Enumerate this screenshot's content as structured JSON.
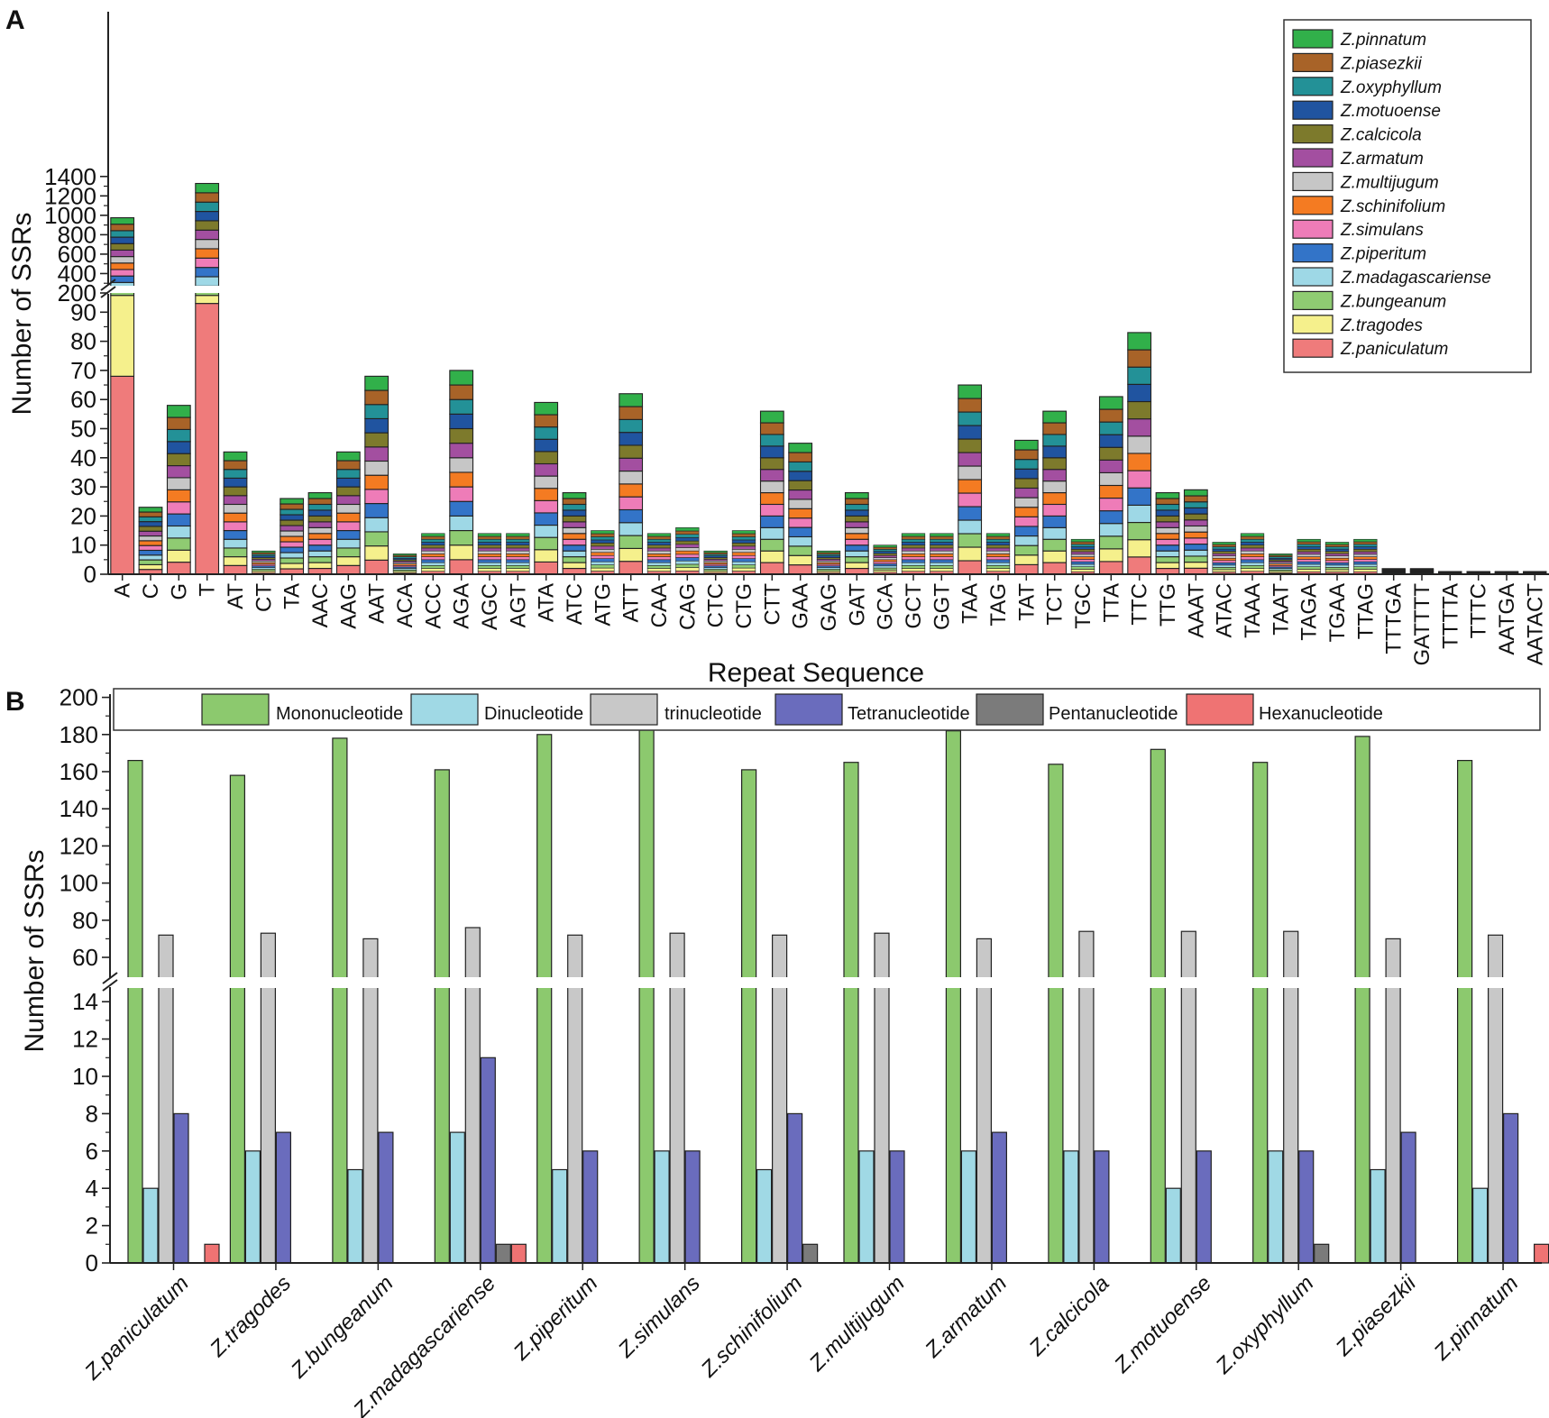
{
  "figure": {
    "panel_labels": [
      "A",
      "B"
    ]
  },
  "chart_data": [
    {
      "type": "bar",
      "stacked": true,
      "panel": "A",
      "xlabel": "Repeat Sequence",
      "ylabel": "Number of SSRs",
      "axis_break": {
        "lower_range": [
          0,
          95
        ],
        "upper_range": [
          100,
          1400
        ]
      },
      "lower_ticks": [
        0,
        10,
        20,
        30,
        40,
        50,
        60,
        70,
        80,
        90
      ],
      "upper_ticks": [
        200,
        400,
        600,
        800,
        1000,
        1200,
        1400
      ],
      "categories": [
        "A",
        "C",
        "G",
        "T",
        "AT",
        "CT",
        "TA",
        "AAC",
        "AAG",
        "AAT",
        "ACA",
        "ACC",
        "AGA",
        "AGC",
        "AGT",
        "ATA",
        "ATC",
        "ATG",
        "ATT",
        "CAA",
        "CAG",
        "CTC",
        "CTG",
        "CTT",
        "GAA",
        "GAG",
        "GAT",
        "GCA",
        "GCT",
        "GGT",
        "TAA",
        "TAG",
        "TAT",
        "TCT",
        "TGC",
        "TTA",
        "TTC",
        "TTG",
        "AAAT",
        "ATAC",
        "TAAA",
        "TAAT",
        "TAGA",
        "TGAA",
        "TTAG",
        "TTTGA",
        "GATTTT",
        "TTTTA",
        "TTTC",
        "AATGA",
        "AATACT"
      ],
      "totals": [
        975,
        23,
        58,
        1328,
        42,
        8,
        26,
        28,
        42,
        68,
        7,
        14,
        70,
        14,
        14,
        59,
        28,
        15,
        62,
        14,
        16,
        8,
        15,
        56,
        45,
        8,
        28,
        10,
        14,
        14,
        65,
        14,
        46,
        56,
        12,
        61,
        83,
        28,
        29,
        11,
        14,
        7,
        12,
        11,
        12,
        2,
        2,
        1,
        1,
        1,
        1
      ],
      "legend_placement": "top-right",
      "series": [
        {
          "name": "Z.paniculatum",
          "color": "#ef7b7b"
        },
        {
          "name": "Z.tragodes",
          "color": "#f5f08c"
        },
        {
          "name": "Z.bungeanum",
          "color": "#8fcb72"
        },
        {
          "name": "Z.madagascariense",
          "color": "#9ed8e6"
        },
        {
          "name": "Z.piperitum",
          "color": "#3374c8"
        },
        {
          "name": "Z.simulans",
          "color": "#ee7cb8"
        },
        {
          "name": "Z.schinifolium",
          "color": "#f47b22"
        },
        {
          "name": "Z.multijugum",
          "color": "#c6c6c6"
        },
        {
          "name": "Z.armatum",
          "color": "#a34fa0"
        },
        {
          "name": "Z.calcicola",
          "color": "#7d7a2c"
        },
        {
          "name": "Z.motuoense",
          "color": "#2054a0"
        },
        {
          "name": "Z.oxyphyllum",
          "color": "#239197"
        },
        {
          "name": "Z.piasezkii",
          "color": "#a86328"
        },
        {
          "name": "Z.pinnatum",
          "color": "#31b04a"
        }
      ],
      "legend_order": [
        "Z.pinnatum",
        "Z.piasezkii",
        "Z.oxyphyllum",
        "Z.motuoense",
        "Z.calcicola",
        "Z.armatum",
        "Z.multijugum",
        "Z.schinifolium",
        "Z.simulans",
        "Z.piperitum",
        "Z.madagascariense",
        "Z.bungeanum",
        "Z.tragodes",
        "Z.paniculatum"
      ],
      "first_segments": {
        "A": [
          68,
          107
        ],
        "T": [
          93,
          82
        ]
      }
    },
    {
      "type": "bar",
      "stacked": false,
      "panel": "B",
      "ylabel": "Number of SSRs",
      "axis_break": {
        "lower_range": [
          0,
          15
        ],
        "upper_range": [
          50,
          200
        ]
      },
      "lower_ticks": [
        0,
        2,
        4,
        6,
        8,
        10,
        12,
        14
      ],
      "upper_ticks": [
        60,
        80,
        100,
        120,
        140,
        160,
        180,
        200
      ],
      "categories": [
        "Z.paniculatum",
        "Z.tragodes",
        "Z.bungeanum",
        "Z.madagascariense",
        "Z.piperitum",
        "Z.simulans",
        "Z.schinifolium",
        "Z.multijugum",
        "Z.armatum",
        "Z.calcicola",
        "Z.motuoense",
        "Z.oxyphyllum",
        "Z.piasezkii",
        "Z.pinnatum"
      ],
      "series": [
        {
          "name": "Mononucleotide",
          "color": "#8cc96e",
          "values": [
            166,
            158,
            178,
            161,
            180,
            183,
            161,
            165,
            182,
            164,
            172,
            165,
            179,
            166
          ]
        },
        {
          "name": "Dinucleotide",
          "color": "#a0d9e5",
          "values": [
            4,
            6,
            5,
            7,
            5,
            6,
            5,
            6,
            6,
            6,
            4,
            6,
            5,
            4
          ]
        },
        {
          "name": "trinucleotide",
          "color": "#c8c8c8",
          "values": [
            72,
            73,
            70,
            76,
            72,
            73,
            72,
            73,
            70,
            74,
            74,
            74,
            70,
            72
          ]
        },
        {
          "name": "Tetranucleotide",
          "color": "#6a6cbd",
          "values": [
            8,
            7,
            7,
            11,
            6,
            6,
            8,
            6,
            7,
            6,
            6,
            6,
            7,
            8
          ]
        },
        {
          "name": "Pentanucleotide",
          "color": "#7b7b7b",
          "values": [
            0,
            0,
            0,
            1,
            0,
            0,
            1,
            0,
            0,
            0,
            0,
            1,
            0,
            0
          ]
        },
        {
          "name": "Hexanucleotide",
          "color": "#ef7373",
          "values": [
            1,
            0,
            0,
            1,
            0,
            0,
            0,
            0,
            0,
            0,
            0,
            0,
            0,
            1
          ]
        }
      ]
    }
  ]
}
